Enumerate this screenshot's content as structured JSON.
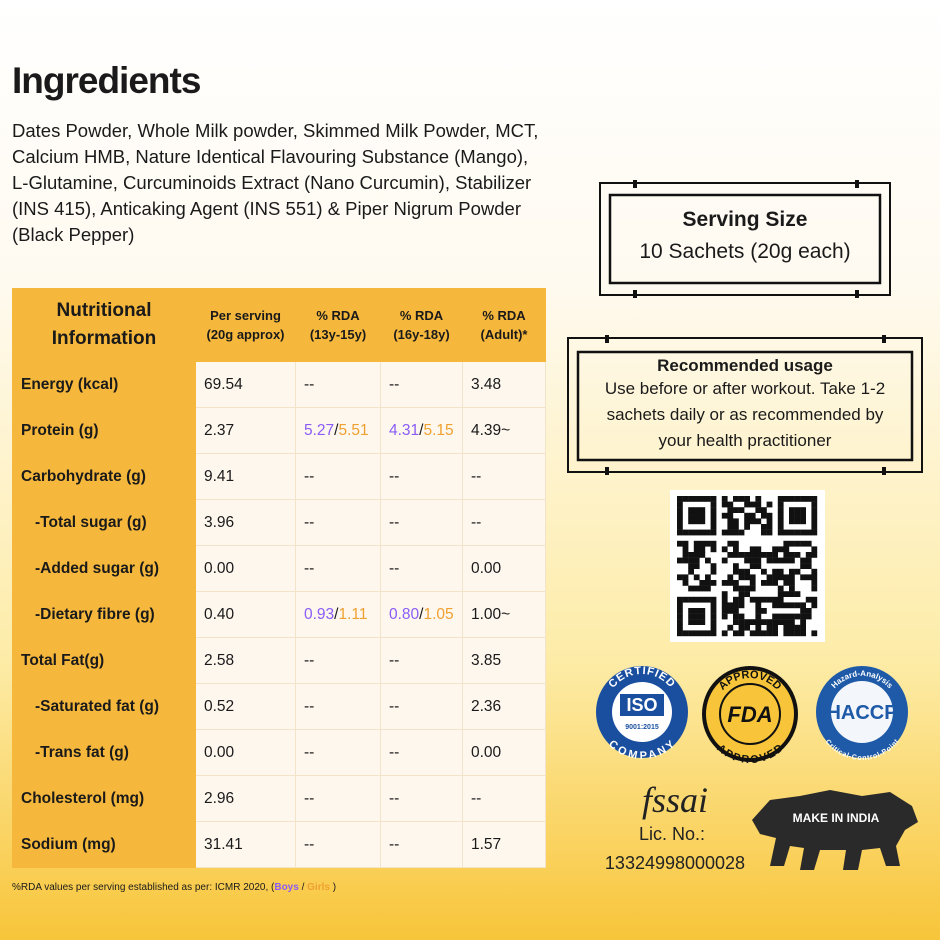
{
  "ingredients": {
    "title": "Ingredients",
    "text": "Dates Powder, Whole Milk powder, Skimmed Milk Powder, MCT, Calcium HMB, Nature Identical Flavouring Substance (Mango), L-Glutamine, Curcuminoids Extract (Nano Curcumin), Stabilizer (INS 415), Anticaking Agent (INS 551) & Piper Nigrum Powder (Black Pepper)"
  },
  "table": {
    "header": [
      "Nutritional Information",
      "Per serving (20g approx)",
      "% RDA (13y-15y)",
      "% RDA (16y-18y)",
      "% RDA (Adult)*"
    ],
    "rows": [
      {
        "label": "Energy (kcal)",
        "cells": [
          "69.54",
          "--",
          "--",
          "3.48"
        ]
      },
      {
        "label": "Protein (g)",
        "cells": [
          "2.37",
          {
            "boys": "5.27",
            "sep": "/",
            "girls": "5.51"
          },
          {
            "boys": "4.31",
            "sep": "/",
            "girls": "5.15"
          },
          "4.39~"
        ]
      },
      {
        "label": "Carbohydrate (g)",
        "cells": [
          "9.41",
          "--",
          "--",
          "--"
        ]
      },
      {
        "label": "-Total sugar (g)",
        "cells": [
          "3.96",
          "--",
          "--",
          "--"
        ]
      },
      {
        "label": "-Added sugar (g)",
        "cells": [
          "0.00",
          "--",
          "--",
          "0.00"
        ]
      },
      {
        "label": "-Dietary fibre (g)",
        "cells": [
          "0.40",
          {
            "boys": "0.93",
            "sep": "/",
            "girls": "1.11"
          },
          {
            "boys": "0.80",
            "sep": "/",
            "girls": "1.05"
          },
          "1.00~"
        ]
      },
      {
        "label": "Total Fat(g)",
        "cells": [
          "2.58",
          "--",
          "--",
          "3.85"
        ]
      },
      {
        "label": "-Saturated fat (g)",
        "cells": [
          "0.52",
          "--",
          "--",
          "2.36"
        ]
      },
      {
        "label": "-Trans fat (g)",
        "cells": [
          "0.00",
          "--",
          "--",
          "0.00"
        ]
      },
      {
        "label": "Cholesterol (mg)",
        "cells": [
          "2.96",
          "--",
          "--",
          "--"
        ]
      },
      {
        "label": "Sodium (mg)",
        "cells": [
          "31.41",
          "--",
          "--",
          "1.57"
        ]
      }
    ],
    "footnote": {
      "text": "%RDA values per serving established as per: ICMR 2020, (",
      "boys": "Boys",
      "sep": " / ",
      "girls": "Girls",
      "end": " )"
    }
  },
  "serving": {
    "title": "Serving Size",
    "text": "10 Sachets (20g each)"
  },
  "usage": {
    "title": "Recommended usage",
    "text": "Use before or after workout. Take 1-2 sachets daily or as recommended by your health practitioner"
  },
  "badges": {
    "iso": {
      "top": "CERTIFIED",
      "main": "ISO",
      "sub": "9001:2015",
      "bottom": "COMPANY"
    },
    "fda": {
      "top": "APPROVED",
      "main": "FDA",
      "bottom": "APPROVED"
    },
    "haccp": {
      "top": "Hazard-Analysis",
      "main": "HACCP",
      "bottom": "Critical-Control-Point"
    }
  },
  "fssai": {
    "logo": "fssai",
    "lic": "Lic. No.:",
    "number": "13324998000028"
  },
  "make_in_india": "MAKE IN INDIA"
}
